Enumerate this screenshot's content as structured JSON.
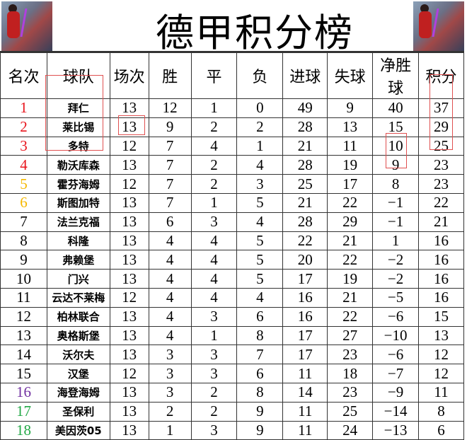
{
  "title": "德甲积分榜",
  "headers": [
    "名次",
    "球队",
    "场次",
    "胜",
    "平",
    "负",
    "进球",
    "失球",
    "净胜球",
    "积分"
  ],
  "rank_colors": {
    "1": "#e8141c",
    "2": "#e8141c",
    "3": "#e8141c",
    "4": "#e8141c",
    "5": "#f5b800",
    "6": "#f5b800",
    "16": "#7030a0",
    "17": "#22a846",
    "18": "#22a846"
  },
  "rows": [
    [
      "1",
      "拜仁",
      "13",
      "12",
      "1",
      "0",
      "49",
      "9",
      "40",
      "37"
    ],
    [
      "2",
      "莱比锡",
      "13",
      "9",
      "2",
      "2",
      "28",
      "13",
      "15",
      "29"
    ],
    [
      "3",
      "多特",
      "12",
      "7",
      "4",
      "1",
      "21",
      "11",
      "10",
      "25"
    ],
    [
      "4",
      "勒沃库森",
      "13",
      "7",
      "2",
      "4",
      "28",
      "19",
      "9",
      "23"
    ],
    [
      "5",
      "霍芬海姆",
      "12",
      "7",
      "2",
      "3",
      "25",
      "17",
      "8",
      "23"
    ],
    [
      "6",
      "斯图加特",
      "13",
      "7",
      "1",
      "5",
      "21",
      "22",
      "−1",
      "22"
    ],
    [
      "7",
      "法兰克福",
      "13",
      "6",
      "3",
      "4",
      "28",
      "29",
      "−1",
      "21"
    ],
    [
      "8",
      "科隆",
      "13",
      "4",
      "4",
      "5",
      "22",
      "21",
      "1",
      "16"
    ],
    [
      "9",
      "弗赖堡",
      "13",
      "4",
      "4",
      "5",
      "20",
      "22",
      "−2",
      "16"
    ],
    [
      "10",
      "门兴",
      "13",
      "4",
      "4",
      "5",
      "17",
      "19",
      "−2",
      "16"
    ],
    [
      "11",
      "云达不莱梅",
      "12",
      "4",
      "4",
      "4",
      "16",
      "21",
      "−5",
      "16"
    ],
    [
      "12",
      "柏林联合",
      "13",
      "4",
      "3",
      "6",
      "16",
      "22",
      "−6",
      "15"
    ],
    [
      "13",
      "奥格斯堡",
      "13",
      "4",
      "1",
      "8",
      "17",
      "27",
      "−10",
      "13"
    ],
    [
      "14",
      "沃尔夫",
      "13",
      "3",
      "3",
      "7",
      "17",
      "23",
      "−6",
      "12"
    ],
    [
      "15",
      "汉堡",
      "12",
      "3",
      "3",
      "6",
      "11",
      "18",
      "−7",
      "12"
    ],
    [
      "16",
      "海登海姆",
      "13",
      "3",
      "2",
      "8",
      "14",
      "23",
      "−9",
      "11"
    ],
    [
      "17",
      "圣保利",
      "13",
      "2",
      "2",
      "9",
      "11",
      "25",
      "−14",
      "8"
    ],
    [
      "18",
      "美因茨05",
      "13",
      "1",
      "3",
      "9",
      "11",
      "24",
      "−13",
      "6"
    ]
  ]
}
